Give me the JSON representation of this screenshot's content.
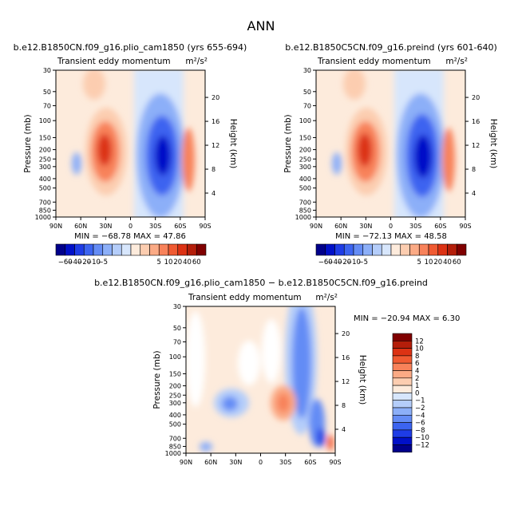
{
  "page": {
    "title": "ANN"
  },
  "colors": {
    "bar_blue": [
      "#00008b",
      "#0010c8",
      "#1e3ce6",
      "#3c64f0",
      "#648cf5",
      "#8caff8",
      "#b4cdfa",
      "#d7e6fc"
    ],
    "bar_red": [
      "#fdebdc",
      "#fccdb0",
      "#fbaa85",
      "#f8825a",
      "#f05a32",
      "#dc3214",
      "#b41e0a",
      "#800000"
    ]
  },
  "chart_data": [
    {
      "type": "heatmap",
      "title": "b.e12.B1850CN.f09_g16.plio_cam1850 (yrs 655-694)",
      "subtitle": "Transient eddy momentum",
      "units": "m²/s²",
      "xlabel": "",
      "ylabel": "Pressure (mb)",
      "y2label": "Height (km)",
      "x_ticks": [
        "90N",
        "60N",
        "30N",
        "0",
        "30S",
        "60S",
        "90S"
      ],
      "y_ticks": [
        "30",
        "50",
        "70",
        "100",
        "150",
        "200",
        "250",
        "300",
        "400",
        "500",
        "700",
        "850",
        "1000"
      ],
      "y2_ticks": [
        "20",
        "16",
        "12",
        "8",
        "4"
      ],
      "stats": {
        "min_label": "MIN =",
        "min": -68.78,
        "max_label": "MAX =",
        "max": 47.86
      },
      "colorbar_levels": [
        "-60",
        "-40",
        "-20",
        "-10",
        "-5",
        "5",
        "10",
        "20",
        "40",
        "60"
      ],
      "features": [
        {
          "lat": -22,
          "p": 200,
          "value": 45,
          "label": "positive max"
        },
        {
          "lat": 35,
          "p": 230,
          "value": -68,
          "label": "negative min"
        },
        {
          "lat": 63,
          "p": 270,
          "value": 25,
          "label": "positive"
        }
      ]
    },
    {
      "type": "heatmap",
      "title": "b.e12.B1850C5CN.f09_g16.preind (yrs 601-640)",
      "subtitle": "Transient eddy momentum",
      "units": "m²/s²",
      "xlabel": "",
      "ylabel": "Pressure (mb)",
      "y2label": "Height (km)",
      "x_ticks": [
        "90N",
        "60N",
        "30N",
        "0",
        "30S",
        "60S",
        "90S"
      ],
      "y_ticks": [
        "30",
        "50",
        "70",
        "100",
        "150",
        "200",
        "250",
        "300",
        "400",
        "500",
        "700",
        "850",
        "1000"
      ],
      "y2_ticks": [
        "20",
        "16",
        "12",
        "8",
        "4"
      ],
      "stats": {
        "min_label": "MIN =",
        "min": -72.13,
        "max_label": "MAX =",
        "max": 48.58
      },
      "colorbar_levels": [
        "-60",
        "-40",
        "-20",
        "-10",
        "-5",
        "5",
        "10",
        "20",
        "40",
        "60"
      ],
      "features": [
        {
          "lat": -22,
          "p": 200,
          "value": 47,
          "label": "positive max"
        },
        {
          "lat": 35,
          "p": 240,
          "value": -72,
          "label": "negative min"
        },
        {
          "lat": 63,
          "p": 270,
          "value": 22,
          "label": "positive"
        }
      ]
    },
    {
      "type": "heatmap",
      "title": "b.e12.B1850CN.f09_g16.plio_cam1850 − b.e12.B1850C5CN.f09_g16.preind",
      "subtitle": "Transient eddy momentum",
      "units": "m²/s²",
      "xlabel": "",
      "ylabel": "Pressure (mb)",
      "y2label": "Height (km)",
      "x_ticks": [
        "90N",
        "60N",
        "30N",
        "0",
        "30S",
        "60S",
        "90S"
      ],
      "y_ticks": [
        "30",
        "50",
        "70",
        "100",
        "150",
        "200",
        "250",
        "300",
        "400",
        "500",
        "700",
        "850",
        "1000"
      ],
      "y2_ticks": [
        "20",
        "16",
        "12",
        "8",
        "4"
      ],
      "stats": {
        "min_label": "MIN =",
        "min": -20.94,
        "max_label": "MAX =",
        "max": 6.3
      },
      "colorbar_levels": [
        "12",
        "10",
        "8",
        "6",
        "4",
        "2",
        "1",
        "0",
        "−1",
        "−2",
        "−4",
        "−6",
        "−8",
        "−10",
        "−12"
      ],
      "features": [
        {
          "lat": 25,
          "p": 300,
          "value": 6,
          "label": "positive"
        },
        {
          "lat": -35,
          "p": 300,
          "value": -4,
          "label": "negative"
        },
        {
          "lat": 50,
          "p": 150,
          "value": -6,
          "label": "negative band"
        },
        {
          "lat": 78,
          "p": 750,
          "value": -12,
          "label": "negative min"
        }
      ]
    }
  ]
}
